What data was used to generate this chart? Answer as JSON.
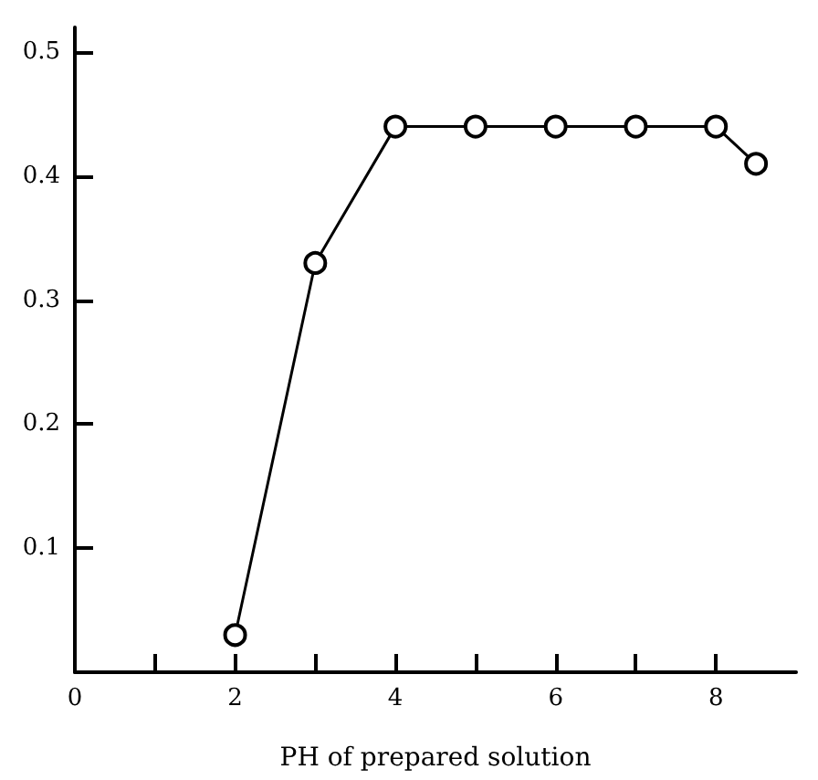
{
  "chart_data": {
    "type": "line",
    "xlabel": "PH of prepared solution",
    "x": [
      2,
      3,
      4,
      5,
      6,
      7,
      8,
      8.5
    ],
    "series": [
      {
        "color": "#000000",
        "values": [
          0.03,
          0.33,
          0.44,
          0.44,
          0.44,
          0.44,
          0.44,
          0.41
        ]
      }
    ],
    "xlim": [
      0,
      9
    ],
    "ylim": [
      0,
      0.52
    ],
    "xticks": [
      0,
      {
        "value": 1,
        "label": null
      },
      2,
      {
        "value": 3,
        "label": null
      },
      4,
      {
        "value": 5,
        "label": null
      },
      6,
      {
        "value": 7,
        "label": null
      },
      8
    ],
    "yticks": [
      0.1,
      0.2,
      0.3,
      0.4,
      0.5
    ],
    "grid": false,
    "marker": "circle",
    "line_style": "solid"
  }
}
